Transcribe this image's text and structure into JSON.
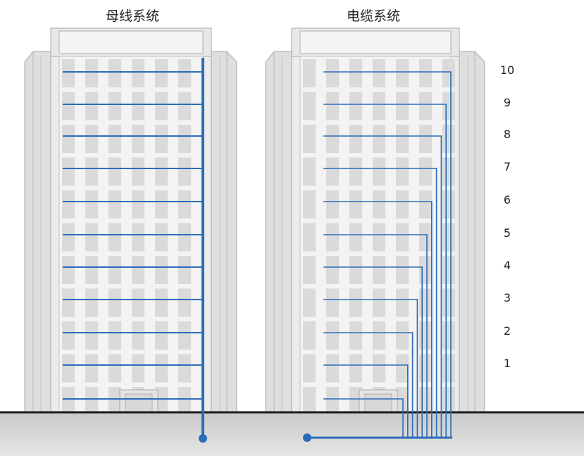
{
  "titles": {
    "busbar": "母线系统",
    "cable": "电缆系统"
  },
  "floors": [
    "10",
    "9",
    "8",
    "7",
    "6",
    "5",
    "4",
    "3",
    "2",
    "1"
  ],
  "colors": {
    "line": "#2b6cb8",
    "ground": "#d9d9d9",
    "building_front": "#ececec",
    "building_side": "#dcdcdc",
    "window": "#d3d3d3",
    "outline": "#a8a8a8"
  }
}
